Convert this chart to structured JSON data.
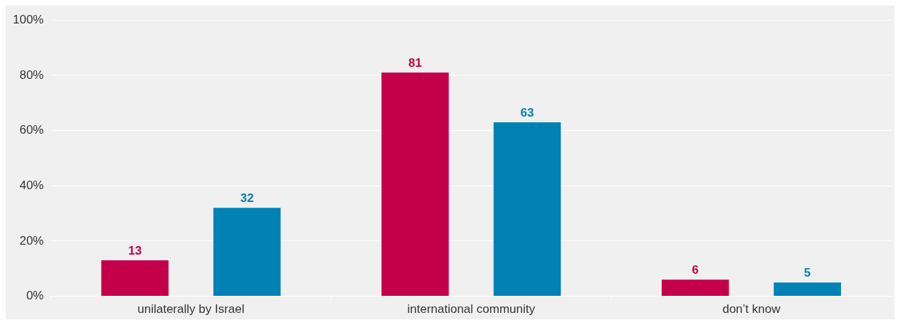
{
  "chart_data": {
    "type": "bar",
    "categories": [
      "unilaterally by Israel",
      "international community",
      "don’t know"
    ],
    "series": [
      {
        "color": "#c4004a",
        "values": [
          13,
          81,
          6
        ]
      },
      {
        "color": "#0082b4",
        "values": [
          32,
          63,
          5
        ]
      }
    ],
    "ylim": [
      0,
      100
    ],
    "yticks": [
      {
        "value": 0,
        "label": "0%"
      },
      {
        "value": 20,
        "label": "20%"
      },
      {
        "value": 40,
        "label": "40%"
      },
      {
        "value": 60,
        "label": "60%"
      },
      {
        "value": 80,
        "label": "80%"
      },
      {
        "value": 100,
        "label": "100%"
      }
    ],
    "grid": "y",
    "legend": false,
    "data_labels": true
  }
}
